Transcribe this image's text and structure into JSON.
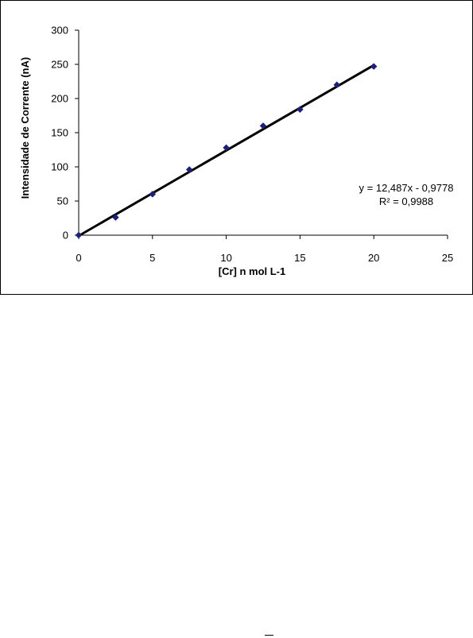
{
  "chart_data": {
    "type": "scatter",
    "xlabel": "[Cr] n mol L-1",
    "ylabel": "Intensidade de Corrente (nA)",
    "xlim": [
      0,
      25
    ],
    "ylim": [
      0,
      300
    ],
    "x_ticks": [
      "0",
      "5",
      "10",
      "15",
      "20",
      "25"
    ],
    "y_ticks": [
      "0",
      "50",
      "100",
      "150",
      "200",
      "250",
      "300"
    ],
    "grid": false,
    "legend": "none",
    "series": [
      {
        "x": [
          0,
          2.5,
          5,
          7.5,
          10,
          12.5,
          15,
          17.5,
          20
        ],
        "y": [
          0,
          26,
          60,
          96,
          128,
          160,
          184,
          220,
          247
        ],
        "marker": "diamond",
        "color": "#1f1f7a"
      }
    ],
    "trendline": {
      "slope": 12.487,
      "intercept": -0.9778,
      "x_range": [
        0,
        20
      ],
      "color": "#000000"
    },
    "annotations": [
      "y = 12,487x - 0,9778",
      "R² = 0,9988"
    ]
  }
}
